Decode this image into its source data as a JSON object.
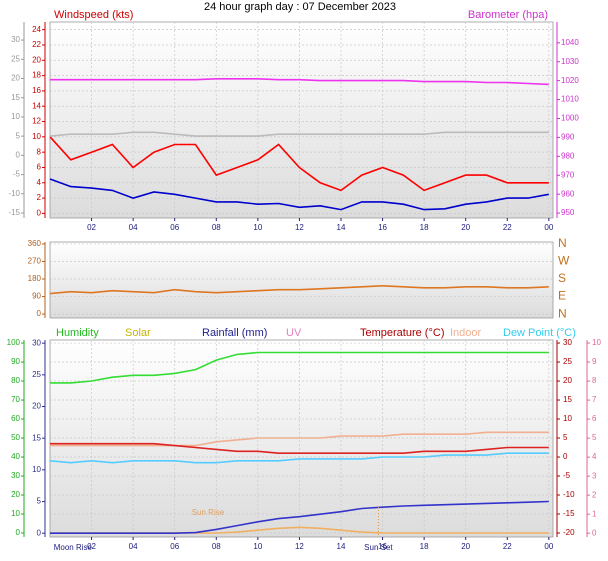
{
  "chart_data": [
    {
      "type": "line",
      "title": "24 hour graph day : 07 December 2023",
      "ylabel": "Windspeed (kts)",
      "y2label": "Barometer (hpa)",
      "x": [
        0,
        1,
        2,
        3,
        4,
        5,
        6,
        7,
        8,
        9,
        10,
        11,
        12,
        13,
        14,
        15,
        16,
        17,
        18,
        19,
        20,
        21,
        22,
        23,
        24
      ],
      "xlim": [
        0,
        24.2
      ],
      "xticks": [
        {
          "value": 2,
          "label": "02"
        },
        {
          "value": 4,
          "label": "04"
        },
        {
          "value": 6,
          "label": "06"
        },
        {
          "value": 8,
          "label": "08"
        },
        10,
        12,
        14,
        16,
        18,
        20,
        22,
        {
          "value": 24,
          "label": "00"
        }
      ],
      "ylim": [
        -0.6,
        25
      ],
      "yticks": [
        0,
        2,
        4,
        6,
        8,
        10,
        12,
        14,
        16,
        18,
        20,
        22,
        24
      ],
      "y2lim": [
        947.4,
        1051
      ],
      "y2ticks": [
        950,
        960,
        970,
        980,
        990,
        1000,
        1010,
        1020,
        1030,
        1040
      ],
      "y3lim": [
        -16.3,
        34.7
      ],
      "y3ticks": [
        -15,
        -10,
        -5,
        0,
        5,
        10,
        15,
        20,
        25,
        30
      ],
      "grid": true,
      "series": [
        {
          "color": "#ff0000",
          "values": [
            10,
            7,
            8,
            9,
            6,
            8,
            9,
            9,
            5,
            6,
            7,
            9,
            6,
            4,
            3,
            5,
            6,
            5,
            3,
            4,
            5,
            5,
            4,
            4,
            4
          ]
        },
        {
          "color": "#0000cc",
          "values": [
            4.5,
            3.5,
            3.3,
            3.0,
            2.0,
            2.8,
            2.5,
            2.0,
            1.5,
            1.5,
            1.2,
            1.3,
            0.8,
            1.0,
            0.5,
            1.5,
            1.5,
            1.2,
            0.5,
            0.6,
            1.2,
            1.5,
            2.0,
            2.0,
            2.5
          ]
        },
        {
          "color": "#bbbbbb",
          "axis": "y3",
          "values": [
            5,
            5.5,
            5.5,
            5.5,
            6,
            6,
            5.5,
            5,
            5,
            5,
            5,
            5.5,
            5.5,
            5.5,
            5.5,
            5.5,
            5.5,
            5.5,
            5.5,
            6,
            6,
            6,
            6,
            6,
            6
          ]
        },
        {
          "color": "#ee33ee",
          "axis": "y2",
          "values": [
            1020.5,
            1020.5,
            1020.5,
            1020.5,
            1020.5,
            1020.5,
            1020.5,
            1020.5,
            1021,
            1021,
            1021,
            1020.5,
            1020.5,
            1020,
            1020,
            1020,
            1020,
            1020,
            1019.5,
            1019.5,
            1019.5,
            1019,
            1019,
            1018.5,
            1018
          ]
        }
      ]
    },
    {
      "type": "line",
      "x": [
        0,
        1,
        2,
        3,
        4,
        5,
        6,
        7,
        8,
        9,
        10,
        11,
        12,
        13,
        14,
        15,
        16,
        17,
        18,
        19,
        20,
        21,
        22,
        23,
        24
      ],
      "xlim": [
        0,
        24.2
      ],
      "ylim": [
        -20,
        370
      ],
      "yticks": [
        0,
        90,
        180,
        270,
        360
      ],
      "y2lim": [
        -20,
        370
      ],
      "y2ticks": [
        {
          "value": 0,
          "label": "N"
        },
        {
          "value": 90,
          "label": "E"
        },
        {
          "value": 180,
          "label": "S"
        },
        {
          "value": 270,
          "label": "W"
        },
        {
          "value": 360,
          "label": "N"
        }
      ],
      "grid": true,
      "series": [
        {
          "color": "#dd7722",
          "values": [
            105,
            115,
            110,
            120,
            115,
            110,
            125,
            115,
            110,
            115,
            120,
            125,
            125,
            130,
            135,
            140,
            145,
            140,
            135,
            135,
            140,
            140,
            135,
            135,
            140
          ]
        }
      ]
    },
    {
      "type": "line",
      "x": [
        0,
        1,
        2,
        3,
        4,
        5,
        6,
        7,
        8,
        9,
        10,
        11,
        12,
        13,
        14,
        15,
        16,
        17,
        18,
        19,
        20,
        21,
        22,
        23,
        24
      ],
      "xlim": [
        0,
        24.2
      ],
      "xticks": [
        {
          "value": 2,
          "label": "02"
        },
        {
          "value": 4,
          "label": "04"
        },
        {
          "value": 6,
          "label": "06"
        },
        {
          "value": 8,
          "label": "08"
        },
        10,
        12,
        14,
        16,
        18,
        20,
        22,
        {
          "value": 24,
          "label": "00"
        }
      ],
      "ylim": [
        -2.1,
        101.6
      ],
      "yticks": [
        0,
        10,
        20,
        30,
        40,
        50,
        60,
        70,
        80,
        90,
        100
      ],
      "y2lim": [
        -21.05,
        30.8
      ],
      "y2ticks": [
        -20,
        -15,
        -10,
        -5,
        0,
        5,
        10,
        15,
        20,
        25,
        30
      ],
      "y3lim": [
        -0.6,
        30.5
      ],
      "y3ticks": [
        0,
        5,
        10,
        15,
        20,
        25,
        30
      ],
      "y4lim": [
        -0.2,
        10.16
      ],
      "y4ticks": [
        0,
        1,
        2,
        3,
        4,
        5,
        6,
        7,
        8,
        9,
        10
      ],
      "grid": true,
      "legend": [
        {
          "name": "Humidity",
          "color": "#22bb22"
        },
        {
          "name": "Solar",
          "color": "#c8b400"
        },
        {
          "name": "Rainfall (mm)",
          "color": "#202090"
        },
        {
          "name": "UV",
          "color": "#e080c0"
        },
        {
          "name": "Temperature (°C)",
          "color": "#aa0000"
        },
        {
          "name": "Indoor",
          "color": "#f0b090"
        },
        {
          "name": "Dew Point (°C)",
          "color": "#33ccee"
        }
      ],
      "series": [
        {
          "color": "#33dd33",
          "values": [
            79,
            79,
            80,
            82,
            83,
            83,
            84,
            86,
            91,
            94,
            95,
            95,
            95,
            95,
            95,
            95,
            95,
            95,
            95,
            95,
            95,
            95,
            95,
            95,
            95
          ]
        },
        {
          "color": "#f0b060",
          "values": [
            0,
            0,
            0,
            0,
            0,
            0,
            0,
            0,
            0,
            0.5,
            1.5,
            2.5,
            3,
            2.5,
            1.5,
            0.5,
            0,
            0,
            0,
            0,
            0,
            0,
            0,
            0,
            0
          ]
        },
        {
          "color": "#3333cc",
          "axis": "y3",
          "values": [
            0,
            0,
            0,
            0,
            0,
            0,
            0,
            0.1,
            0.6,
            1.2,
            1.8,
            2.3,
            2.6,
            3.0,
            3.4,
            3.9,
            4.1,
            4.3,
            4.4,
            4.5,
            4.6,
            4.7,
            4.8,
            4.9,
            5.0
          ]
        },
        {
          "color": "#f0b090",
          "axis": "y2",
          "values": [
            3,
            3,
            3,
            3,
            3,
            3,
            3,
            3,
            4,
            4.5,
            5,
            5,
            5,
            5,
            5.5,
            5.5,
            5.5,
            6,
            6,
            6,
            6,
            6.5,
            6.5,
            6.5,
            6.5
          ]
        },
        {
          "color": "#dd2222",
          "axis": "y2",
          "values": [
            3.5,
            3.5,
            3.5,
            3.5,
            3.5,
            3.5,
            3,
            2.5,
            2,
            1.5,
            1.5,
            1,
            1,
            1,
            1,
            1,
            1,
            1,
            1.5,
            1.5,
            1.5,
            2,
            2.5,
            2.5,
            2.5
          ]
        },
        {
          "color": "#55ccff",
          "axis": "y2",
          "values": [
            -1,
            -1.5,
            -1,
            -1.5,
            -1,
            -1,
            -1,
            -1.5,
            -1.5,
            -1,
            -1,
            -1,
            -0.5,
            -0.5,
            -0.5,
            -0.5,
            0,
            0,
            0,
            0.5,
            0.5,
            0.5,
            1,
            1,
            1
          ]
        }
      ],
      "annotations": [
        {
          "text": "Moon Rise",
          "x": 1.1
        },
        {
          "text": "Sun Rise",
          "x": 7.6
        },
        {
          "text": "Sun Set",
          "x": 15.8
        }
      ]
    }
  ]
}
